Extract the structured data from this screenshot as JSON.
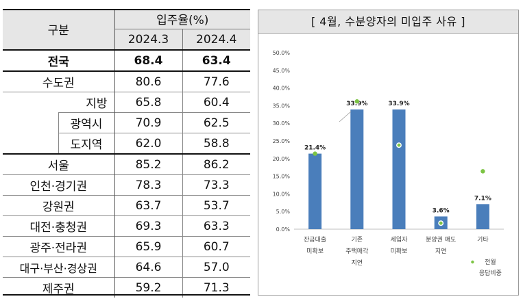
{
  "table": {
    "header_group": "구분",
    "header_metric": "입주율(%)",
    "years": [
      "2024.3",
      "2024.4"
    ],
    "rows": [
      {
        "label": "전국",
        "v1": "68.4",
        "v2": "63.4",
        "bold": true
      },
      {
        "label": "수도권",
        "v1": "80.6",
        "v2": "77.6"
      },
      {
        "label": "지방",
        "v1": "65.8",
        "v2": "60.4"
      },
      {
        "label": "광역시",
        "v1": "70.9",
        "v2": "62.5"
      },
      {
        "label": "도지역",
        "v1": "62.0",
        "v2": "58.8"
      },
      {
        "label": "서울",
        "v1": "85.2",
        "v2": "86.2"
      },
      {
        "label": "인천·경기권",
        "v1": "78.3",
        "v2": "73.3"
      },
      {
        "label": "강원권",
        "v1": "63.7",
        "v2": "53.7"
      },
      {
        "label": "대전·충청권",
        "v1": "69.3",
        "v2": "63.3"
      },
      {
        "label": "광주·전라권",
        "v1": "65.9",
        "v2": "60.7"
      },
      {
        "label": "대구·부산·경상권",
        "v1": "64.6",
        "v2": "57.0"
      },
      {
        "label": "제주권",
        "v1": "59.2",
        "v2": "71.3"
      }
    ]
  },
  "chart_data": {
    "type": "bar",
    "title": "[ 4월, 수분양자의 미입주 사유 ]",
    "categories": [
      [
        "잔금대출",
        "미확보"
      ],
      [
        "기존",
        "주택매각",
        "지연"
      ],
      [
        "세입자",
        "미확보"
      ],
      [
        "분양권 매도",
        "지연"
      ],
      [
        "기타"
      ]
    ],
    "series": [
      {
        "values": [
          21.4,
          33.9,
          33.9,
          3.6,
          7.1
        ],
        "data_labels": [
          "21.4%",
          "33.9%",
          "33.9%",
          "3.6%",
          "7.1%"
        ],
        "color": "#4a7ebb"
      },
      {
        "name": "전월 응답비중",
        "values": [
          21.4,
          36.2,
          23.8,
          1.7,
          16.4
        ],
        "color": "#7cc444",
        "marker": "dot"
      }
    ],
    "yticks": [
      "0.0%",
      "5.0%",
      "10.0%",
      "15.0%",
      "20.0%",
      "25.0%",
      "30.0%",
      "35.0%",
      "40.0%",
      "45.0%",
      "50.0%"
    ],
    "ylim": [
      0,
      50
    ],
    "legend": {
      "label_lines": [
        "전월",
        "응답비중"
      ],
      "position": "bottom-right"
    },
    "grid": false
  }
}
